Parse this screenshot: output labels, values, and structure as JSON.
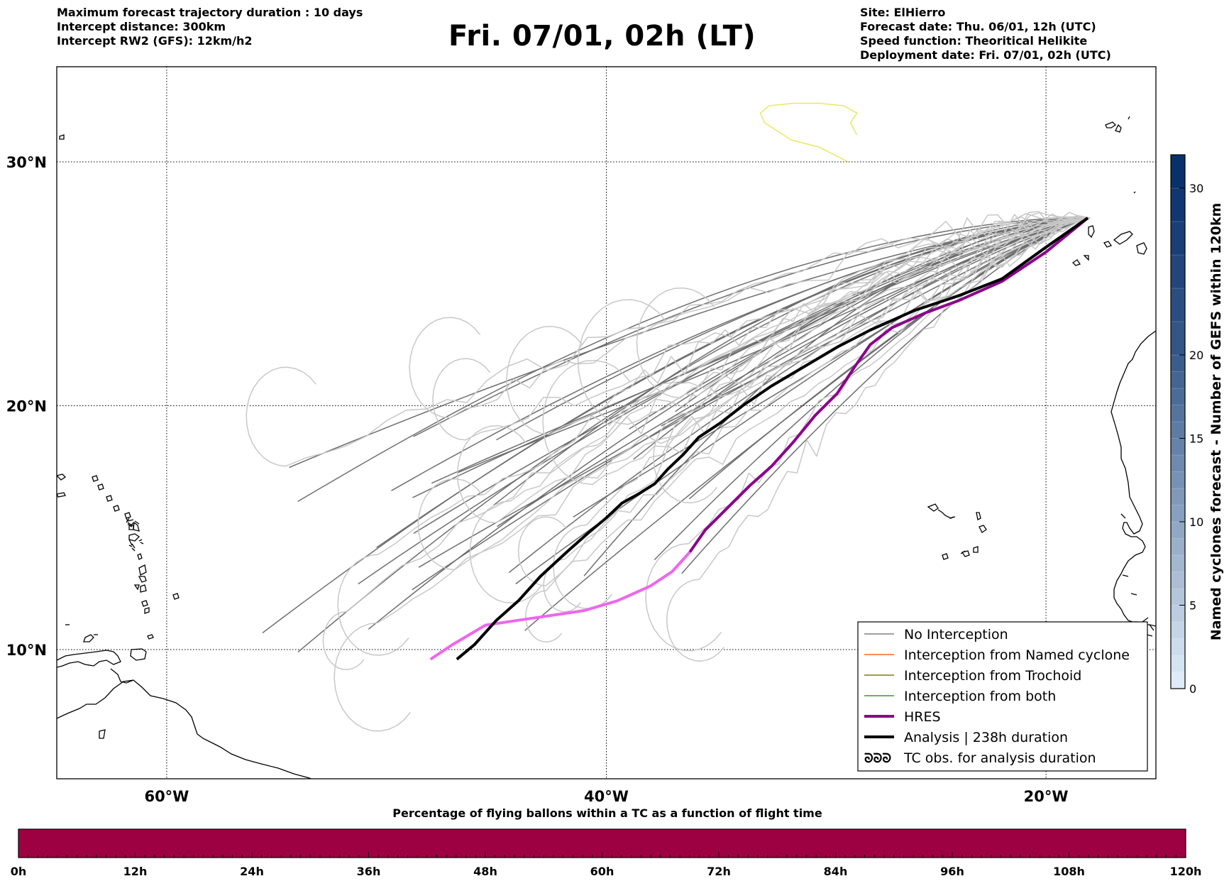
{
  "header_left": [
    "Maximum forecast trajectory duration : 10 days",
    "Intercept distance: 300km",
    "Intercept RW2 (GFS):  12km/h2"
  ],
  "title": "Fri. 07/01, 02h (LT)",
  "header_right": [
    "Site: ElHierro",
    "Forecast date: Thu. 06/01, 12h (UTC)",
    "Speed function: Theoritical Helikite",
    "Deployment date: Fri. 07/01, 02h (UTC)"
  ],
  "map": {
    "lat_labels": [
      "30°N",
      "20°N",
      "10°N"
    ],
    "lon_labels": [
      "60°W",
      "40°W",
      "20°W"
    ],
    "lat_values": [
      30,
      20,
      10
    ],
    "lon_values": [
      -60,
      -40,
      -20
    ],
    "extent": {
      "lon": [
        -65,
        -15
      ],
      "lat": [
        4.7,
        33.9
      ]
    },
    "site": {
      "name": "ElHierro",
      "lon": -18.0,
      "lat": 27.7
    }
  },
  "legend": {
    "items": [
      {
        "label": "No Interception",
        "color": "#808080",
        "style": "line",
        "width": 1.5
      },
      {
        "label": "Interception from Named cyclone",
        "color": "#ff6a1a",
        "style": "line",
        "width": 1.5
      },
      {
        "label": "Interception from Trochoid",
        "color": "#808000",
        "style": "line",
        "width": 1.5
      },
      {
        "label": "Interception from both",
        "color": "#2ca02c",
        "style": "line",
        "width": 1.5
      },
      {
        "label": "HRES",
        "color": "#8b008b",
        "style": "line",
        "width": 4
      },
      {
        "label": "Analysis | 238h duration",
        "color": "#000000",
        "style": "line",
        "width": 4
      },
      {
        "label": "TC obs. for analysis duration",
        "color": "#000000",
        "style": "symbol",
        "width": 1
      }
    ]
  },
  "colorbar_right": {
    "label": "Named cyclones forecast - Number of GEFS within 120km",
    "ticks": [
      "0",
      "5",
      "10",
      "15",
      "20",
      "30"
    ],
    "tick_values": [
      0,
      5,
      10,
      15,
      20,
      30
    ],
    "levels": [
      0,
      1,
      2,
      3,
      4,
      5,
      6,
      7,
      8,
      9,
      10,
      11,
      12,
      13,
      14,
      15,
      16,
      17,
      18,
      19,
      20,
      22,
      24,
      26,
      28,
      30,
      32
    ],
    "color_low": "#deebf7",
    "color_high": "#08306b"
  },
  "timebar": {
    "title": "Percentage of flying ballons within a TC as a function of flight time",
    "ticks": [
      "0h",
      "12h",
      "24h",
      "36h",
      "48h",
      "60h",
      "72h",
      "84h",
      "96h",
      "108h",
      "120h"
    ],
    "fill_color": "#9e0142",
    "percent_series": [
      0,
      0,
      0,
      0,
      0,
      0,
      0,
      0,
      0,
      0,
      0
    ]
  },
  "chart_data": {
    "type": "line",
    "x_unit": "longitude (deg)",
    "y_unit": "latitude (deg)",
    "series": [
      {
        "name": "HRES",
        "color": "#8b008b",
        "end_color": "#ee66ee",
        "points": [
          [
            -18.1,
            27.7
          ],
          [
            -20.0,
            26.3
          ],
          [
            -22.0,
            25.1
          ],
          [
            -24.0,
            24.3
          ],
          [
            -25.5,
            23.8
          ],
          [
            -27.0,
            23.2
          ],
          [
            -28.0,
            22.5
          ],
          [
            -28.7,
            21.6
          ],
          [
            -29.5,
            20.5
          ],
          [
            -30.5,
            19.6
          ],
          [
            -31.5,
            18.5
          ],
          [
            -32.5,
            17.5
          ],
          [
            -33.5,
            16.7
          ],
          [
            -34.5,
            15.8
          ],
          [
            -35.5,
            14.9
          ],
          [
            -36.2,
            14.0
          ],
          [
            -37.0,
            13.2
          ],
          [
            -38.0,
            12.6
          ],
          [
            -39.5,
            12.0
          ],
          [
            -41.0,
            11.6
          ],
          [
            -42.5,
            11.4
          ],
          [
            -44.0,
            11.2
          ],
          [
            -45.5,
            11.0
          ],
          [
            -47.0,
            10.2
          ],
          [
            -48.0,
            9.6
          ]
        ]
      },
      {
        "name": "Analysis | 238h duration",
        "color": "#000000",
        "points": [
          [
            -18.1,
            27.7
          ],
          [
            -20.0,
            26.5
          ],
          [
            -22.0,
            25.2
          ],
          [
            -24.0,
            24.5
          ],
          [
            -26.0,
            23.9
          ],
          [
            -28.0,
            23.1
          ],
          [
            -29.5,
            22.4
          ],
          [
            -31.0,
            21.6
          ],
          [
            -32.5,
            20.8
          ],
          [
            -33.8,
            20.0
          ],
          [
            -34.8,
            19.3
          ],
          [
            -35.8,
            18.7
          ],
          [
            -36.5,
            18.0
          ],
          [
            -37.2,
            17.4
          ],
          [
            -37.8,
            16.8
          ],
          [
            -38.5,
            16.4
          ],
          [
            -39.3,
            16.0
          ],
          [
            -40.0,
            15.4
          ],
          [
            -40.8,
            14.8
          ],
          [
            -41.8,
            14.0
          ],
          [
            -43.0,
            13.0
          ],
          [
            -44.0,
            12.0
          ],
          [
            -45.0,
            11.2
          ],
          [
            -46.0,
            10.2
          ],
          [
            -46.8,
            9.6
          ]
        ]
      },
      {
        "name": "",
        "color": "#e8e862",
        "points": [
          [
            -29.0,
            30.0
          ],
          [
            -30.3,
            30.6
          ],
          [
            -31.6,
            30.9
          ],
          [
            -32.1,
            31.2
          ],
          [
            -32.8,
            31.6
          ],
          [
            -33.0,
            32.0
          ],
          [
            -32.6,
            32.3
          ],
          [
            -31.5,
            32.4
          ],
          [
            -30.3,
            32.4
          ],
          [
            -29.2,
            32.3
          ],
          [
            -28.6,
            32.0
          ],
          [
            -28.9,
            31.6
          ],
          [
            -28.6,
            31.1
          ]
        ]
      }
    ],
    "gefs_members_shown": 50,
    "grid": true
  }
}
